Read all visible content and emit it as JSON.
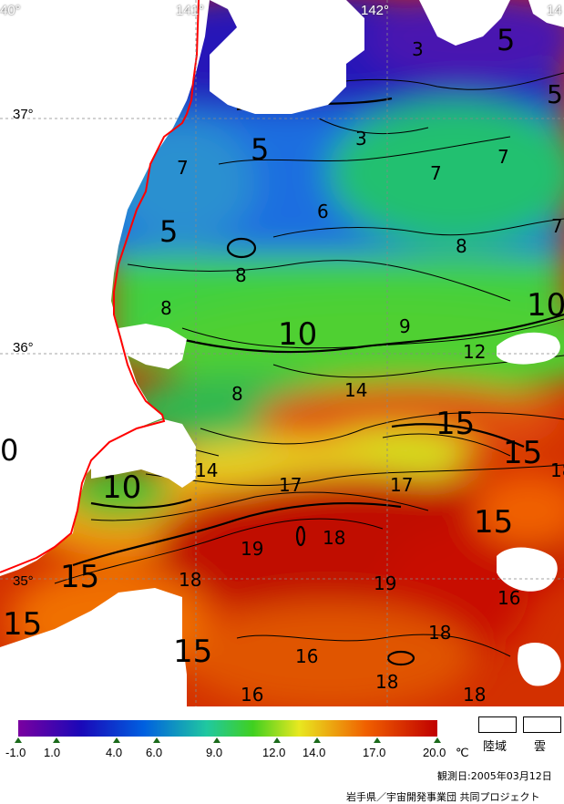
{
  "coords": {
    "lon_140": "40°",
    "lon_141": "141°",
    "lon_142": "142°",
    "lon_143": "14",
    "lat_37": "37°",
    "lat_36": "36°",
    "lat_35": "35°"
  },
  "isotherm_labels": [
    "3",
    "3",
    "5",
    "5",
    "5",
    "5",
    "7",
    "7",
    "7",
    "7",
    "6",
    "8",
    "8",
    "8",
    "8",
    "10",
    "10",
    "9",
    "12",
    "14",
    "15",
    "15",
    "15",
    "15",
    "15",
    "10",
    "17",
    "17",
    "18",
    "18",
    "19",
    "19",
    "18",
    "16",
    "16",
    "18",
    "18",
    "18",
    "16",
    "14",
    "0"
  ],
  "colorbar": {
    "tick_labels": [
      "-1.0",
      "1.0",
      "4.0",
      "6.0",
      "9.0",
      "12.0",
      "14.0",
      "17.0",
      "20.0"
    ],
    "unit": "℃",
    "colors": [
      "#7a00a0",
      "#1a08b8",
      "#0060e0",
      "#20c8a0",
      "#40d020",
      "#e8e820",
      "#f06000",
      "#c00000"
    ]
  },
  "legend": {
    "land_label": "陸域",
    "cloud_label": "雲"
  },
  "footer": {
    "observation_date": "観測日:2005年03月12日",
    "credit": "岩手県／宇宙開発事業団 共同プロジェクト"
  }
}
